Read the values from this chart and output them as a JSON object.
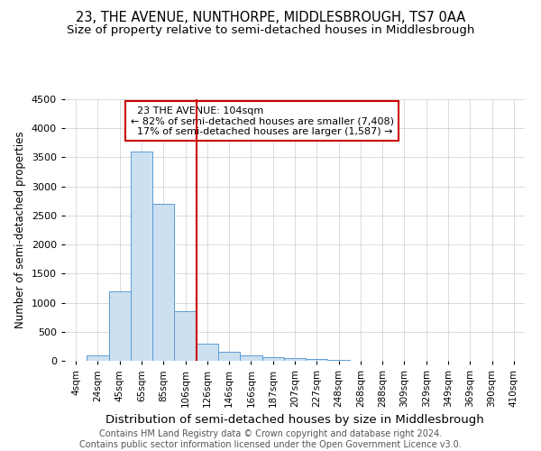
{
  "title": "23, THE AVENUE, NUNTHORPE, MIDDLESBROUGH, TS7 0AA",
  "subtitle": "Size of property relative to semi-detached houses in Middlesbrough",
  "xlabel": "Distribution of semi-detached houses by size in Middlesbrough",
  "ylabel": "Number of semi-detached properties",
  "footnote": "Contains HM Land Registry data © Crown copyright and database right 2024.\nContains public sector information licensed under the Open Government Licence v3.0.",
  "bar_labels": [
    "4sqm",
    "24sqm",
    "45sqm",
    "65sqm",
    "85sqm",
    "106sqm",
    "126sqm",
    "146sqm",
    "166sqm",
    "187sqm",
    "207sqm",
    "227sqm",
    "248sqm",
    "268sqm",
    "288sqm",
    "309sqm",
    "329sqm",
    "349sqm",
    "369sqm",
    "390sqm",
    "410sqm"
  ],
  "bar_values": [
    0,
    100,
    1200,
    3600,
    2700,
    850,
    300,
    160,
    100,
    60,
    40,
    30,
    20,
    5,
    3,
    0,
    0,
    0,
    0,
    0,
    0
  ],
  "bar_color": "#cce0f0",
  "bar_edge_color": "#5b9bd5",
  "grid_color": "#cccccc",
  "ylim": [
    0,
    4500
  ],
  "property_bin_index": 5,
  "vline_x_offset": 0.5,
  "property_label": "23 THE AVENUE: 104sqm",
  "pct_smaller": 82,
  "count_smaller": 7408,
  "pct_larger": 17,
  "count_larger": 1587,
  "vline_color": "#cc0000",
  "annotation_box_color": "#cc0000",
  "annotation_bg": "#ffffff",
  "title_fontsize": 10.5,
  "subtitle_fontsize": 9.5,
  "tick_fontsize": 7.5,
  "ylabel_fontsize": 8.5,
  "xlabel_fontsize": 9.5,
  "footnote_fontsize": 7.0
}
